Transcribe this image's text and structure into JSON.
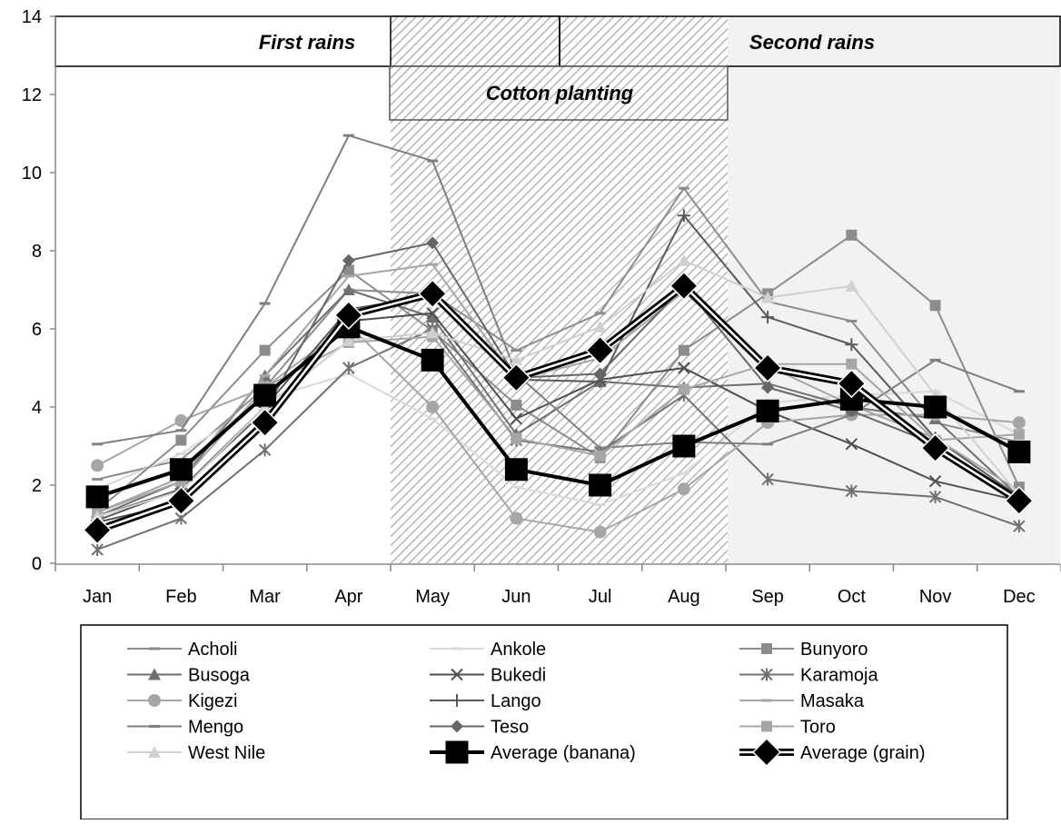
{
  "chart_data": {
    "type": "line",
    "categories": [
      "Jan",
      "Feb",
      "Mar",
      "Apr",
      "May",
      "Jun",
      "Jul",
      "Aug",
      "Sep",
      "Oct",
      "Nov",
      "Dec"
    ],
    "ylim": [
      0,
      14
    ],
    "yticks": [
      "0",
      "2",
      "4",
      "6",
      "8",
      "10",
      "12",
      "14"
    ],
    "grid": false,
    "legend_position": "bottom",
    "annotations": {
      "first_rains": "First rains",
      "second_rains": "Second rains",
      "cotton_planting": "Cotton planting"
    },
    "series": [
      {
        "name": "Acholi",
        "marker": "dash",
        "color": "#8c8c8c",
        "values": [
          2.15,
          2.65,
          4.5,
          7.0,
          6.9,
          5.45,
          6.4,
          9.6,
          6.7,
          6.2,
          3.6,
          3.1
        ]
      },
      {
        "name": "Ankole",
        "marker": "dash",
        "color": "#d9d9d9",
        "values": [
          1.9,
          2.8,
          4.2,
          4.85,
          3.7,
          1.95,
          1.5,
          2.3,
          4.1,
          4.3,
          4.4,
          3.3
        ]
      },
      {
        "name": "Bunyoro",
        "marker": "square",
        "color": "#8c8c8c",
        "values": [
          1.35,
          3.15,
          5.45,
          7.5,
          5.95,
          4.05,
          2.7,
          5.45,
          6.9,
          8.4,
          6.6,
          1.95
        ]
      },
      {
        "name": "Busoga",
        "marker": "triangle",
        "color": "#6f6f6f",
        "values": [
          1.2,
          2.1,
          4.8,
          7.0,
          6.3,
          3.3,
          4.65,
          4.5,
          4.6,
          4.0,
          3.7,
          1.7
        ]
      },
      {
        "name": "Bukedi",
        "marker": "x",
        "color": "#4f4f4f",
        "values": [
          1.05,
          1.55,
          3.7,
          6.2,
          6.4,
          3.7,
          4.7,
          5.0,
          3.9,
          3.05,
          2.1,
          1.6
        ]
      },
      {
        "name": "Karamoja",
        "marker": "star",
        "color": "#707070",
        "values": [
          0.35,
          1.15,
          2.9,
          5.0,
          6.0,
          3.15,
          2.85,
          4.3,
          2.15,
          1.85,
          1.7,
          0.95
        ]
      },
      {
        "name": "Kigezi",
        "marker": "circle",
        "color": "#a6a6a6",
        "values": [
          2.5,
          3.65,
          4.5,
          6.1,
          4.0,
          1.15,
          0.8,
          1.9,
          3.6,
          3.8,
          3.8,
          3.6
        ]
      },
      {
        "name": "Lango",
        "marker": "plus",
        "color": "#595959",
        "values": [
          1.1,
          1.9,
          4.0,
          6.5,
          6.85,
          4.7,
          4.65,
          8.9,
          6.3,
          5.6,
          3.2,
          1.7
        ]
      },
      {
        "name": "Masaka",
        "marker": "dash",
        "color": "#a6a6a6",
        "values": [
          1.3,
          2.2,
          4.8,
          7.35,
          7.65,
          4.7,
          5.25,
          6.95,
          5.05,
          4.05,
          3.2,
          1.85
        ]
      },
      {
        "name": "Mengo",
        "marker": "dash",
        "color": "#7f7f7f",
        "values": [
          3.05,
          3.4,
          6.65,
          10.95,
          10.3,
          4.85,
          2.95,
          3.1,
          3.05,
          3.8,
          5.2,
          4.4
        ]
      },
      {
        "name": "Teso",
        "marker": "diamond",
        "color": "#666666",
        "values": [
          1.2,
          1.9,
          3.9,
          7.75,
          8.2,
          4.75,
          4.85,
          7.1,
          4.5,
          3.9,
          3.05,
          1.6
        ]
      },
      {
        "name": "Toro",
        "marker": "square",
        "color": "#a6a6a6",
        "values": [
          1.3,
          2.1,
          4.5,
          5.65,
          5.8,
          3.2,
          2.75,
          4.45,
          5.1,
          5.1,
          3.15,
          3.3
        ]
      },
      {
        "name": "West Nile",
        "marker": "triangle",
        "color": "#d0d0d0",
        "values": [
          1.2,
          1.85,
          4.0,
          5.7,
          5.9,
          5.2,
          6.05,
          7.75,
          6.8,
          7.1,
          4.3,
          1.75
        ]
      },
      {
        "name": "Average (banana)",
        "marker": "big-square",
        "color": "#000000",
        "values": [
          1.7,
          2.4,
          4.3,
          6.05,
          5.2,
          2.4,
          2.0,
          3.0,
          3.9,
          4.2,
          4.0,
          2.85
        ]
      },
      {
        "name": "Average (grain)",
        "marker": "big-diamond",
        "color": "#000000",
        "values": [
          0.85,
          1.6,
          3.6,
          6.35,
          6.9,
          4.75,
          5.45,
          7.1,
          5.0,
          4.6,
          2.95,
          1.6
        ]
      }
    ]
  }
}
